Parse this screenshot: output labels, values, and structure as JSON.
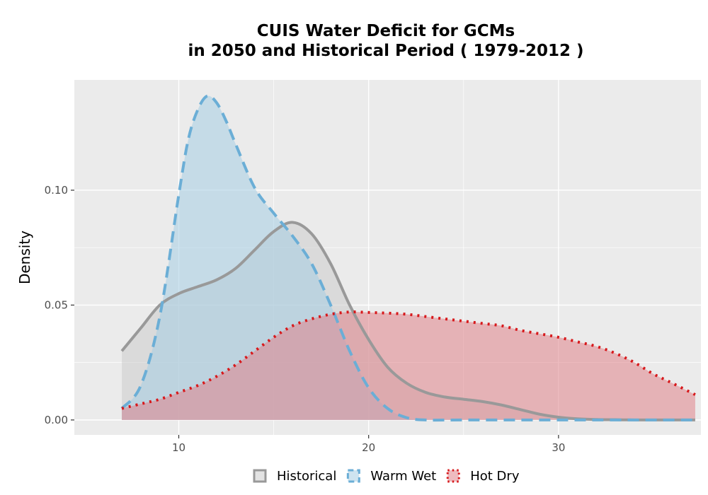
{
  "chart_data": {
    "type": "area",
    "title_lines": [
      "CUIS  Water Deficit for GCMs",
      "in 2050 and Historical Period ( 1979-2012 )"
    ],
    "xlabel": "",
    "ylabel": "Density",
    "xlim": [
      4.5,
      37.5
    ],
    "ylim": [
      -0.0065,
      0.148
    ],
    "x_ticks": [
      10,
      20,
      30
    ],
    "y_ticks": [
      0.0,
      0.05,
      0.1
    ],
    "y_tick_labels": [
      "0.00",
      "0.05",
      "0.10"
    ],
    "grid": true,
    "legend_position": "bottom",
    "series": [
      {
        "name": "Historical",
        "fill": "#cccccc",
        "line": "#999999",
        "dash": "solid",
        "x": [
          7.0,
          8.0,
          9.0,
          10.0,
          11.0,
          12.0,
          13.0,
          14.0,
          15.0,
          16.0,
          17.0,
          18.0,
          19.0,
          20.0,
          21.0,
          22.0,
          23.0,
          24.0,
          25.0,
          26.0,
          27.0,
          28.0,
          29.0,
          30.0,
          31.0,
          32.0,
          33.0,
          34.0,
          35.0,
          36.0,
          37.2
        ],
        "y": [
          0.03,
          0.04,
          0.05,
          0.055,
          0.058,
          0.061,
          0.066,
          0.074,
          0.082,
          0.086,
          0.081,
          0.068,
          0.05,
          0.035,
          0.023,
          0.016,
          0.012,
          0.01,
          0.009,
          0.008,
          0.0065,
          0.0045,
          0.0025,
          0.0012,
          0.0005,
          0.0002,
          0.0001,
          0.0,
          0.0,
          0.0,
          0.0
        ]
      },
      {
        "name": "Warm Wet",
        "fill": "#a6cee3",
        "line": "#6baed6",
        "dash": "dashed",
        "x": [
          7.0,
          8.0,
          9.0,
          10.0,
          10.5,
          11.0,
          11.5,
          12.0,
          12.5,
          13.0,
          14.0,
          15.0,
          16.0,
          17.0,
          18.0,
          19.0,
          20.0,
          21.0,
          22.0,
          23.0,
          25.0,
          30.0,
          37.2
        ],
        "y": [
          0.005,
          0.015,
          0.045,
          0.098,
          0.122,
          0.135,
          0.141,
          0.138,
          0.13,
          0.12,
          0.101,
          0.09,
          0.08,
          0.068,
          0.05,
          0.03,
          0.014,
          0.005,
          0.001,
          0.0,
          0.0,
          0.0,
          0.0
        ]
      },
      {
        "name": "Hot Dry",
        "fill": "#e0848b",
        "line": "#d7191c",
        "dash": "dotted",
        "x": [
          7.0,
          8.0,
          9.0,
          10.0,
          11.0,
          12.0,
          13.0,
          14.0,
          15.0,
          16.0,
          17.0,
          18.0,
          19.0,
          20.0,
          21.0,
          22.0,
          23.0,
          24.0,
          25.0,
          26.0,
          27.0,
          28.0,
          29.0,
          30.0,
          31.0,
          32.0,
          33.0,
          34.0,
          35.0,
          36.0,
          37.2
        ],
        "y": [
          0.005,
          0.007,
          0.009,
          0.012,
          0.015,
          0.019,
          0.024,
          0.03,
          0.036,
          0.041,
          0.044,
          0.046,
          0.047,
          0.0468,
          0.0465,
          0.046,
          0.045,
          0.044,
          0.043,
          0.042,
          0.041,
          0.039,
          0.0375,
          0.036,
          0.034,
          0.032,
          0.029,
          0.025,
          0.02,
          0.016,
          0.011
        ]
      }
    ]
  }
}
